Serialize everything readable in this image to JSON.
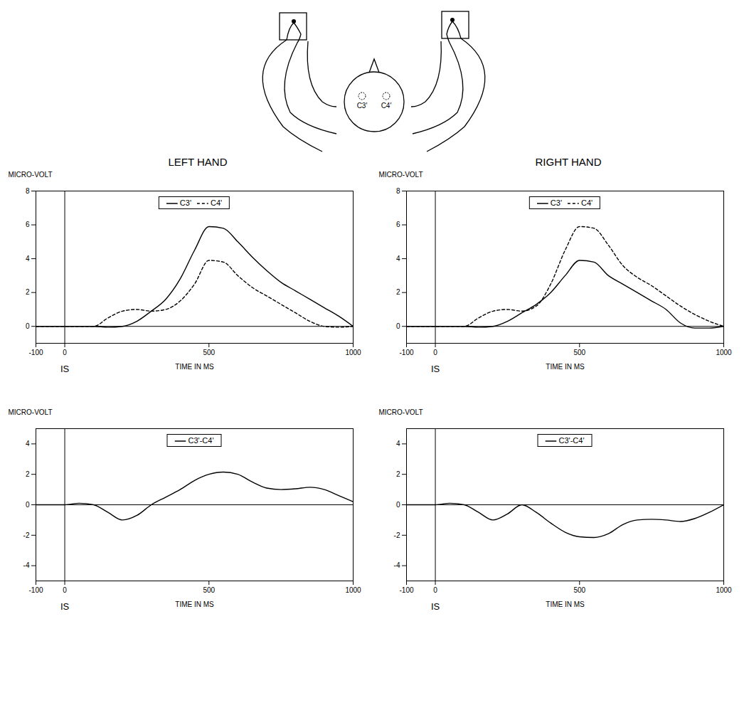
{
  "diagram": {
    "electrodes": [
      "C3'",
      "C4'"
    ]
  },
  "chart_data": [
    {
      "type": "line",
      "title": "LEFT HAND",
      "x_label": "TIME IN MS",
      "y_label": "MICRO-VOLT",
      "xlim": [
        -100,
        1000
      ],
      "xticks": [
        -100,
        0,
        500,
        1000
      ],
      "ylim": [
        -1,
        8
      ],
      "yticks": [
        0,
        2,
        4,
        6,
        8
      ],
      "legend": "top",
      "grid": false,
      "annotations": [
        {
          "text": "IS",
          "x": 0
        }
      ],
      "reference_lines": [
        {
          "axis": "x",
          "value": 0
        },
        {
          "axis": "y",
          "value": 0
        }
      ],
      "x": [
        -100,
        0,
        50,
        100,
        150,
        200,
        250,
        300,
        350,
        400,
        450,
        500,
        550,
        600,
        650,
        700,
        750,
        800,
        850,
        900,
        950,
        1000
      ],
      "series": [
        {
          "name": "C3'",
          "color": "#000000",
          "line_style": "solid",
          "values": [
            0,
            0,
            0,
            0,
            -0.05,
            0,
            0.3,
            0.9,
            1.6,
            2.8,
            4.5,
            5.9,
            5.8,
            5.0,
            4.1,
            3.3,
            2.6,
            2.1,
            1.6,
            1.1,
            0.6,
            0
          ]
        },
        {
          "name": "C4'",
          "color": "#000000",
          "line_style": "dashed",
          "values": [
            0,
            0,
            0,
            0,
            0.5,
            0.9,
            1.0,
            0.9,
            1.0,
            1.5,
            2.5,
            3.9,
            3.8,
            3.0,
            2.3,
            1.8,
            1.3,
            0.8,
            0.3,
            0,
            -0.05,
            0
          ]
        }
      ]
    },
    {
      "type": "line",
      "title": "RIGHT HAND",
      "x_label": "TIME IN MS",
      "y_label": "MICRO-VOLT",
      "xlim": [
        -100,
        1000
      ],
      "xticks": [
        -100,
        0,
        500,
        1000
      ],
      "ylim": [
        -1,
        8
      ],
      "yticks": [
        0,
        2,
        4,
        6,
        8
      ],
      "legend": "top",
      "grid": false,
      "annotations": [
        {
          "text": "IS",
          "x": 0
        }
      ],
      "reference_lines": [
        {
          "axis": "x",
          "value": 0
        },
        {
          "axis": "y",
          "value": 0
        }
      ],
      "x": [
        -100,
        0,
        50,
        100,
        150,
        200,
        250,
        300,
        350,
        400,
        450,
        500,
        550,
        600,
        650,
        700,
        750,
        800,
        850,
        900,
        950,
        1000
      ],
      "series": [
        {
          "name": "C3'",
          "color": "#000000",
          "line_style": "solid",
          "values": [
            0,
            0,
            0,
            0,
            -0.05,
            0,
            0.3,
            0.8,
            1.3,
            2.0,
            3.0,
            3.9,
            3.8,
            3.0,
            2.5,
            2.0,
            1.5,
            1.0,
            0.2,
            -0.1,
            -0.1,
            0
          ]
        },
        {
          "name": "C4'",
          "color": "#000000",
          "line_style": "dashed",
          "values": [
            0,
            0,
            0,
            0,
            0.5,
            0.9,
            1.0,
            0.9,
            1.2,
            2.5,
            4.5,
            5.9,
            5.8,
            4.8,
            3.6,
            2.9,
            2.4,
            1.8,
            1.2,
            0.7,
            0.3,
            0
          ]
        }
      ]
    },
    {
      "type": "line",
      "x_label": "TIME IN MS",
      "y_label": "MICRO-VOLT",
      "xlim": [
        -100,
        1000
      ],
      "xticks": [
        -100,
        0,
        500,
        1000
      ],
      "ylim": [
        -5,
        5
      ],
      "yticks": [
        -4,
        -2,
        0,
        2,
        4
      ],
      "legend": "top",
      "grid": false,
      "annotations": [
        {
          "text": "IS",
          "x": 0
        }
      ],
      "reference_lines": [
        {
          "axis": "x",
          "value": 0
        },
        {
          "axis": "y",
          "value": 0
        }
      ],
      "x": [
        -100,
        0,
        50,
        100,
        150,
        200,
        250,
        300,
        350,
        400,
        450,
        500,
        550,
        600,
        650,
        700,
        750,
        800,
        850,
        900,
        950,
        1000
      ],
      "series": [
        {
          "name": "C3'-C4'",
          "color": "#000000",
          "line_style": "solid",
          "values": [
            0,
            0,
            0.1,
            0,
            -0.5,
            -1.0,
            -0.7,
            0,
            0.5,
            1.0,
            1.6,
            2.0,
            2.15,
            2.0,
            1.5,
            1.1,
            1.0,
            1.05,
            1.15,
            1.0,
            0.6,
            0.2
          ]
        }
      ]
    },
    {
      "type": "line",
      "x_label": "TIME IN MS",
      "y_label": "MICRO-VOLT",
      "xlim": [
        -100,
        1000
      ],
      "xticks": [
        -100,
        0,
        500,
        1000
      ],
      "ylim": [
        -5,
        5
      ],
      "yticks": [
        -4,
        -2,
        0,
        2,
        4
      ],
      "legend": "top",
      "grid": false,
      "annotations": [
        {
          "text": "IS",
          "x": 0
        }
      ],
      "reference_lines": [
        {
          "axis": "x",
          "value": 0
        },
        {
          "axis": "y",
          "value": 0
        }
      ],
      "x": [
        -100,
        0,
        50,
        100,
        150,
        200,
        250,
        300,
        350,
        400,
        450,
        500,
        550,
        600,
        650,
        700,
        750,
        800,
        850,
        900,
        950,
        1000
      ],
      "series": [
        {
          "name": "C3'-C4'",
          "color": "#000000",
          "line_style": "solid",
          "values": [
            0,
            0,
            0.1,
            0,
            -0.5,
            -1.0,
            -0.6,
            0,
            -0.5,
            -1.2,
            -1.8,
            -2.1,
            -2.15,
            -1.9,
            -1.3,
            -1.0,
            -0.95,
            -1.0,
            -1.1,
            -0.9,
            -0.5,
            0
          ]
        }
      ]
    }
  ]
}
